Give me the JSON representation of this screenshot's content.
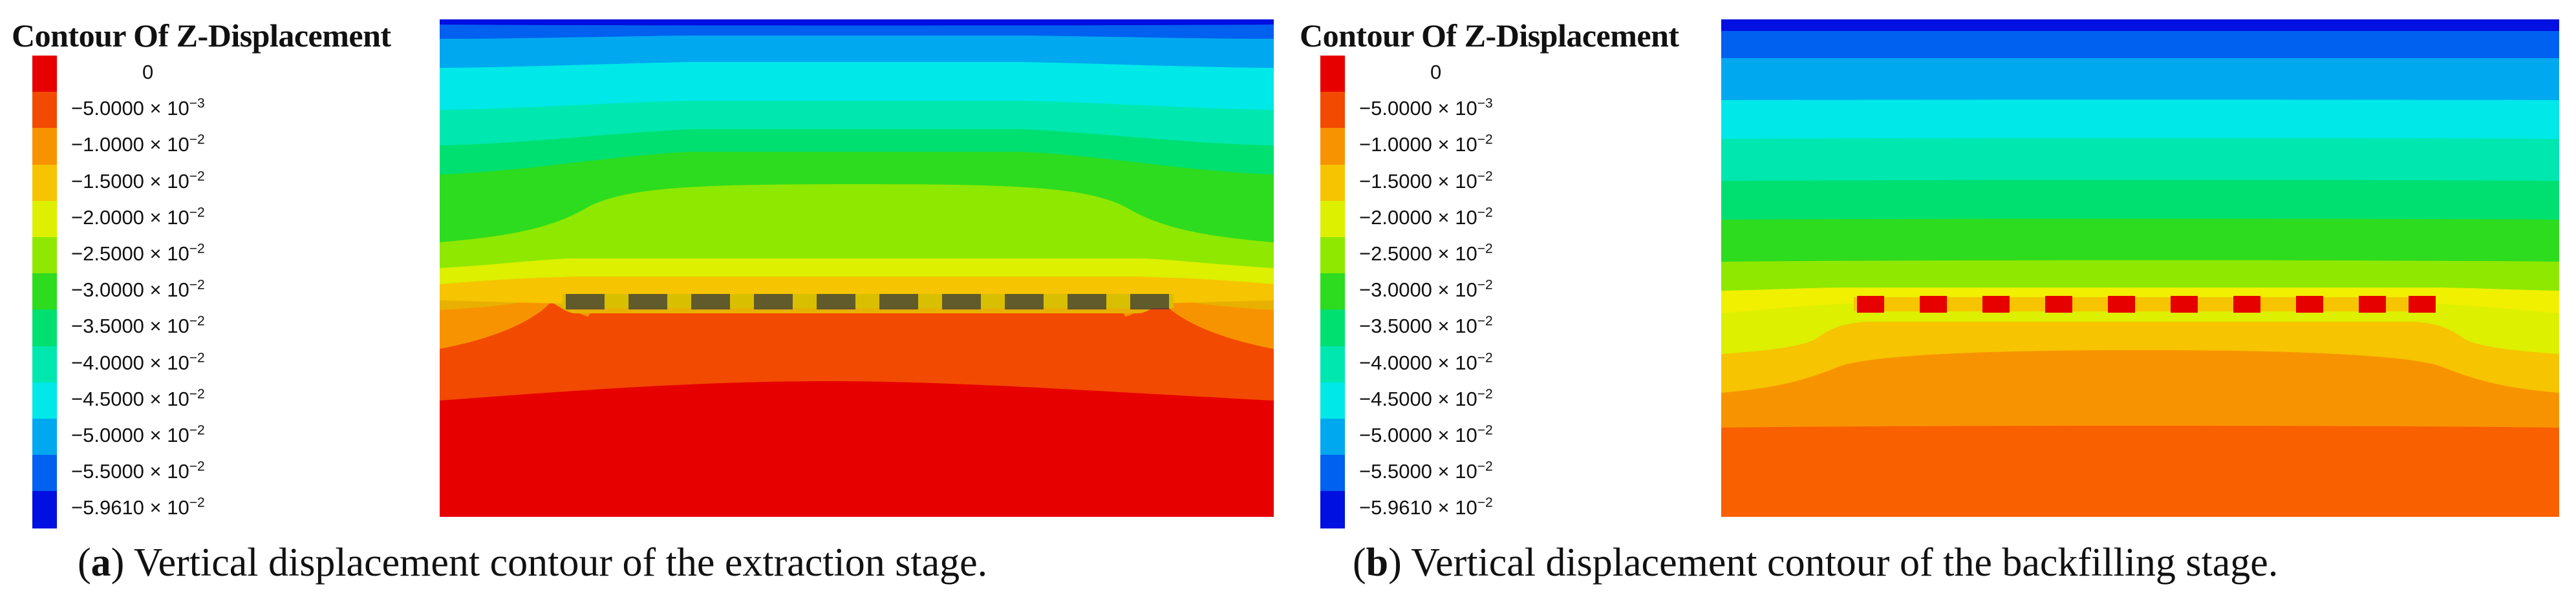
{
  "panels": [
    {
      "legend_title": "Contour Of Z-Displacement",
      "legend": [
        {
          "mantissa": "0",
          "exponent": "",
          "color": "#e60000"
        },
        {
          "mantissa": "−5.0000 × 10",
          "exponent": "−3",
          "color": "#f24a00"
        },
        {
          "mantissa": "−1.0000 × 10",
          "exponent": "−2",
          "color": "#f89300"
        },
        {
          "mantissa": "−1.5000 × 10",
          "exponent": "−2",
          "color": "#f6c400"
        },
        {
          "mantissa": "−2.0000 × 10",
          "exponent": "−2",
          "color": "#dcf000"
        },
        {
          "mantissa": "−2.5000 × 10",
          "exponent": "−2",
          "color": "#8ee800"
        },
        {
          "mantissa": "−3.0000 × 10",
          "exponent": "−2",
          "color": "#2ddc1e"
        },
        {
          "mantissa": "−3.5000 × 10",
          "exponent": "−2",
          "color": "#00e070"
        },
        {
          "mantissa": "−4.0000 × 10",
          "exponent": "−2",
          "color": "#00e8b0"
        },
        {
          "mantissa": "−4.5000 × 10",
          "exponent": "−2",
          "color": "#00e8e8"
        },
        {
          "mantissa": "−5.0000 × 10",
          "exponent": "−2",
          "color": "#00a8f0"
        },
        {
          "mantissa": "−5.5000 × 10",
          "exponent": "−2",
          "color": "#0060f0"
        },
        {
          "mantissa": "−5.9610 × 10",
          "exponent": "−2",
          "color": "#0010e0"
        }
      ],
      "caption_label": "a",
      "caption_text": "Vertical displacement contour of the extraction stage."
    },
    {
      "legend_title": "Contour Of Z-Displacement",
      "legend": [
        {
          "mantissa": "0",
          "exponent": "",
          "color": "#e60000"
        },
        {
          "mantissa": "−5.0000 × 10",
          "exponent": "−3",
          "color": "#f24a00"
        },
        {
          "mantissa": "−1.0000 × 10",
          "exponent": "−2",
          "color": "#f89300"
        },
        {
          "mantissa": "−1.5000 × 10",
          "exponent": "−2",
          "color": "#f6c400"
        },
        {
          "mantissa": "−2.0000 × 10",
          "exponent": "−2",
          "color": "#dcf000"
        },
        {
          "mantissa": "−2.5000 × 10",
          "exponent": "−2",
          "color": "#8ee800"
        },
        {
          "mantissa": "−3.0000 × 10",
          "exponent": "−2",
          "color": "#2ddc1e"
        },
        {
          "mantissa": "−3.5000 × 10",
          "exponent": "−2",
          "color": "#00e070"
        },
        {
          "mantissa": "−4.0000 × 10",
          "exponent": "−2",
          "color": "#00e8b0"
        },
        {
          "mantissa": "−4.5000 × 10",
          "exponent": "−2",
          "color": "#00e8e8"
        },
        {
          "mantissa": "−5.0000 × 10",
          "exponent": "−2",
          "color": "#00a8f0"
        },
        {
          "mantissa": "−5.5000 × 10",
          "exponent": "−2",
          "color": "#0060f0"
        },
        {
          "mantissa": "−5.9610 × 10",
          "exponent": "−2",
          "color": "#0010e0"
        }
      ],
      "caption_label": "b",
      "caption_text": "Vertical displacement contour of the backfilling stage."
    }
  ]
}
